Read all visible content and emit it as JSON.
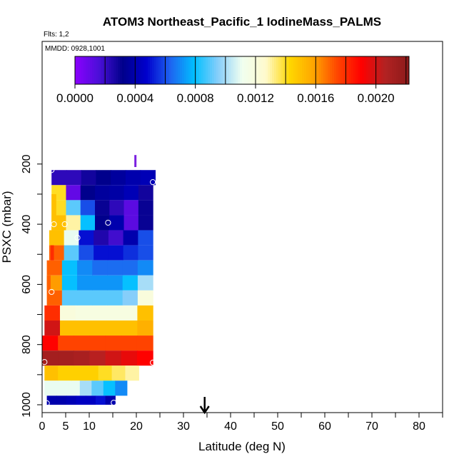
{
  "chart_data": {
    "type": "heatmap",
    "title": "ATOM3 Northeast_Pacific_1 IodineMass_PALMS",
    "flights_label": "Flts: 1,2",
    "date_label": "MMDD: 0928,1001",
    "xlabel": "Latitude (deg N)",
    "ylabel": "PSXC (mbar)",
    "xlim": [
      0,
      85
    ],
    "ylim": [
      1000,
      100
    ],
    "x_ticks": [
      "0",
      "5",
      "10",
      "20",
      "30",
      "40",
      "50",
      "60",
      "70",
      "80"
    ],
    "y_ticks": [
      "200",
      "400",
      "600",
      "800",
      "1000"
    ],
    "colorbar": {
      "min": 0.0,
      "max": 0.00222,
      "tick_labels": [
        "0.0000",
        "0.0004",
        "0.0008",
        "0.0012",
        "0.0016",
        "0.0020"
      ],
      "colors": [
        "#8B00FF",
        "#4B0FD8",
        "#00008B",
        "#0000CD",
        "#1E64F0",
        "#00BFFF",
        "#87CEFA",
        "#F0FFF0",
        "#FFFACD",
        "#FFD700",
        "#FFA500",
        "#FF4500",
        "#FF0000",
        "#B22222",
        "#8B1A1A"
      ]
    },
    "marker_latitude": 34.5,
    "bands": [
      {
        "p_top": 220,
        "p_bot": 270,
        "x0": 2.0,
        "x1": 24.0,
        "values": [
          0.00022,
          0.00022,
          0.00028,
          0.00032,
          0.00036,
          0.0004,
          0.00042
        ]
      },
      {
        "p_top": 270,
        "p_bot": 320,
        "x0": 2.0,
        "x1": 23.5,
        "values": [
          0.0014,
          0.0001,
          0.00032,
          0.00036,
          0.00038,
          0.00042,
          0.00028
        ]
      },
      {
        "p_top": 320,
        "p_bot": 370,
        "x0": 2.0,
        "x1": 23.5,
        "values": [
          0.0014,
          0.0009,
          0.0006,
          0.0003,
          0.00022,
          0.00012,
          0.0003
        ]
      },
      {
        "p_top": 370,
        "p_bot": 420,
        "x0": 2.0,
        "x1": 23.5,
        "values": [
          0.0015,
          0.0013,
          0.0008,
          0.00032,
          0.0004,
          0.00012,
          0.0003
        ]
      },
      {
        "p_top": 420,
        "p_bot": 470,
        "x0": 1.5,
        "x1": 23.5,
        "values": [
          0.0015,
          0.0011,
          0.0005,
          0.00025,
          0.00018,
          0.0004,
          0.0006
        ]
      },
      {
        "p_top": 470,
        "p_bot": 520,
        "x0": 1.5,
        "x1": 23.5,
        "values": [
          0.0017,
          0.0009,
          0.0006,
          0.0005,
          0.0005,
          0.00055,
          0.0006
        ]
      },
      {
        "p_top": 520,
        "p_bot": 570,
        "x0": 1.0,
        "x1": 23.5,
        "values": [
          0.0017,
          0.0008,
          0.0007,
          0.00065,
          0.00065,
          0.00065,
          0.0007
        ]
      },
      {
        "p_top": 570,
        "p_bot": 620,
        "x0": 1.0,
        "x1": 23.5,
        "values": [
          0.0016,
          0.0008,
          0.00072,
          0.00072,
          0.00072,
          0.0008,
          0.001
        ]
      },
      {
        "p_top": 620,
        "p_bot": 670,
        "x0": 1.0,
        "x1": 23.5,
        "values": [
          0.0017,
          0.0009,
          0.0009,
          0.0009,
          0.0009,
          0.00095,
          0.0012
        ]
      },
      {
        "p_top": 670,
        "p_bot": 720,
        "x0": 0.5,
        "x1": 23.5,
        "values": [
          0.0018,
          0.0012,
          0.00118,
          0.00118,
          0.00118,
          0.00118,
          0.0015
        ]
      },
      {
        "p_top": 720,
        "p_bot": 770,
        "x0": 0.5,
        "x1": 23.5,
        "values": [
          0.002,
          0.0015,
          0.0015,
          0.0015,
          0.0015,
          0.0015,
          0.00155
        ]
      },
      {
        "p_top": 770,
        "p_bot": 820,
        "x0": 0.0,
        "x1": 23.5,
        "values": [
          0.0019,
          0.00175,
          0.00175,
          0.00175,
          0.00175,
          0.00175,
          0.00175
        ]
      },
      {
        "p_top": 820,
        "p_bot": 870,
        "x0": 0.0,
        "x1": 23.5,
        "values": [
          0.00212,
          0.00212,
          0.0021,
          0.00205,
          0.002,
          0.00195,
          0.0019
        ]
      },
      {
        "p_top": 870,
        "p_bot": 920,
        "x0": 0.5,
        "x1": 20.5,
        "values": [
          0.0015,
          0.00145,
          0.00145,
          0.00145,
          0.0014,
          0.00135,
          0.0013
        ]
      },
      {
        "p_top": 920,
        "p_bot": 970,
        "x0": 0.5,
        "x1": 18.0,
        "values": [
          0.0011,
          0.0011,
          0.0011,
          0.001,
          0.0009,
          0.0008,
          0.0007
        ]
      },
      {
        "p_top": 970,
        "p_bot": 1000,
        "x0": 1.0,
        "x1": 15.5,
        "values": [
          0.0004,
          0.0004,
          0.00042,
          0.00045,
          0.00045,
          0.0005,
          0.0004
        ]
      }
    ],
    "edge_bars": [
      {
        "p_top": 300,
        "p_bot": 420,
        "x0": 2.0,
        "x1": 3.0,
        "value": 0.0015
      },
      {
        "p_top": 470,
        "p_bot": 520,
        "x0": 1.8,
        "x1": 2.5,
        "value": 0.0018
      },
      {
        "p_top": 570,
        "p_bot": 620,
        "x0": 1.0,
        "x1": 1.8,
        "value": 0.0017
      }
    ],
    "profile_line": {
      "lat": 19.8,
      "p_top": 170,
      "p_bot": 210,
      "value": 1e-05
    },
    "points": [
      {
        "lat": 2.0,
        "p": 220
      },
      {
        "lat": 23.5,
        "p": 260
      },
      {
        "lat": 2.5,
        "p": 400
      },
      {
        "lat": 4.8,
        "p": 400
      },
      {
        "lat": 7.5,
        "p": 445
      },
      {
        "lat": 14.0,
        "p": 395
      },
      {
        "lat": 2.0,
        "p": 625
      },
      {
        "lat": 0.5,
        "p": 858
      },
      {
        "lat": 23.5,
        "p": 860
      },
      {
        "lat": 1.0,
        "p": 995
      },
      {
        "lat": 15.2,
        "p": 993
      }
    ]
  }
}
